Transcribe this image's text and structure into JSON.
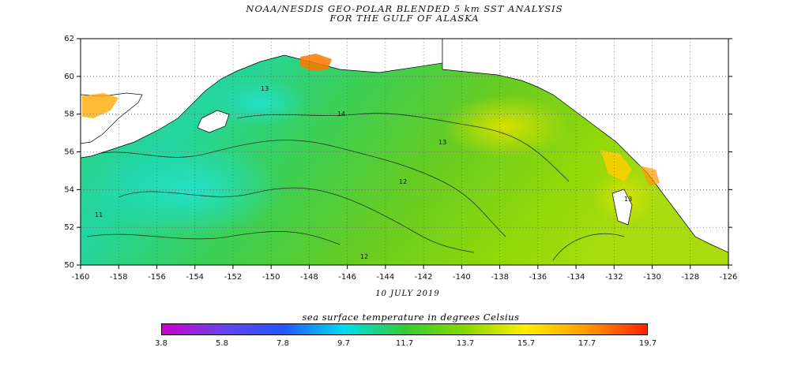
{
  "title_line1": "NOAA/NESDIS GEO-POLAR BLENDED 5 km SST ANALYSIS",
  "title_line2": "FOR THE GULF OF ALASKA",
  "date": "10 JULY 2019",
  "map": {
    "lon_range": [
      -160,
      -126
    ],
    "lat_range": [
      50,
      62
    ],
    "x_ticks": [
      "-160",
      "-158",
      "-156",
      "-154",
      "-152",
      "-150",
      "-148",
      "-146",
      "-144",
      "-142",
      "-140",
      "-138",
      "-136",
      "-134",
      "-132",
      "-130",
      "-128",
      "-126"
    ],
    "y_ticks": [
      "50",
      "52",
      "54",
      "56",
      "58",
      "60",
      "62"
    ],
    "grid": "dotted",
    "contour_labels": [
      "14",
      "13",
      "12",
      "11",
      "13",
      "12",
      "13"
    ]
  },
  "colorbar": {
    "title": "sea surface temperature in degrees Celsius",
    "labels": [
      "3.8",
      "5.8",
      "7.8",
      "9.7",
      "11.7",
      "13.7",
      "15.7",
      "17.7",
      "19.7"
    ],
    "colors": [
      "#cc00cc",
      "#6644ee",
      "#2255ff",
      "#00ddee",
      "#33cc33",
      "#88d800",
      "#ffee00",
      "#ff9900",
      "#ff2200"
    ]
  }
}
